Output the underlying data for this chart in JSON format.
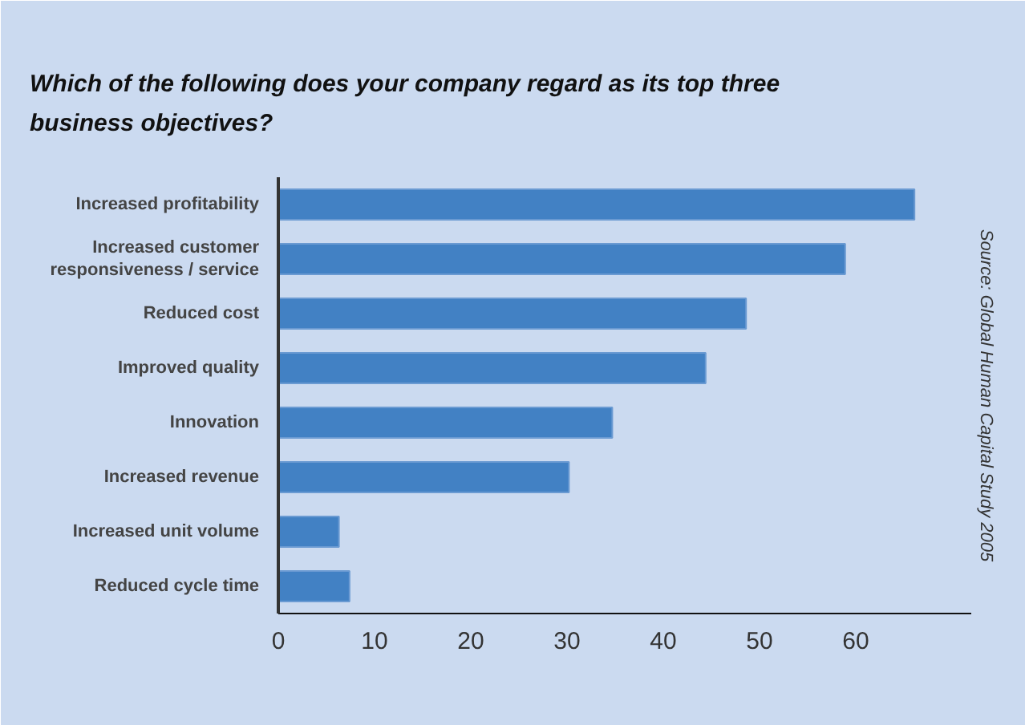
{
  "chart_data": {
    "type": "bar",
    "orientation": "horizontal",
    "title": "Which of the following does your company regard as its top three business objectives?",
    "categories": [
      "Increased profitability",
      "Increased customer\nresponsiveness / service",
      "Reduced cost",
      "Improved quality",
      "Innovation",
      "Increased revenue",
      "Increased unit volume",
      "Reduced cycle time"
    ],
    "values": [
      66.1,
      58.9,
      48.6,
      44.4,
      34.7,
      30.2,
      6.3,
      7.4
    ],
    "color": "#4281c4",
    "xlim": [
      0,
      72
    ],
    "xticks": [
      0,
      10,
      20,
      30,
      40,
      50,
      60
    ],
    "grid": false,
    "annotations": [
      "Source: Global Human Capital Study 2005"
    ]
  }
}
